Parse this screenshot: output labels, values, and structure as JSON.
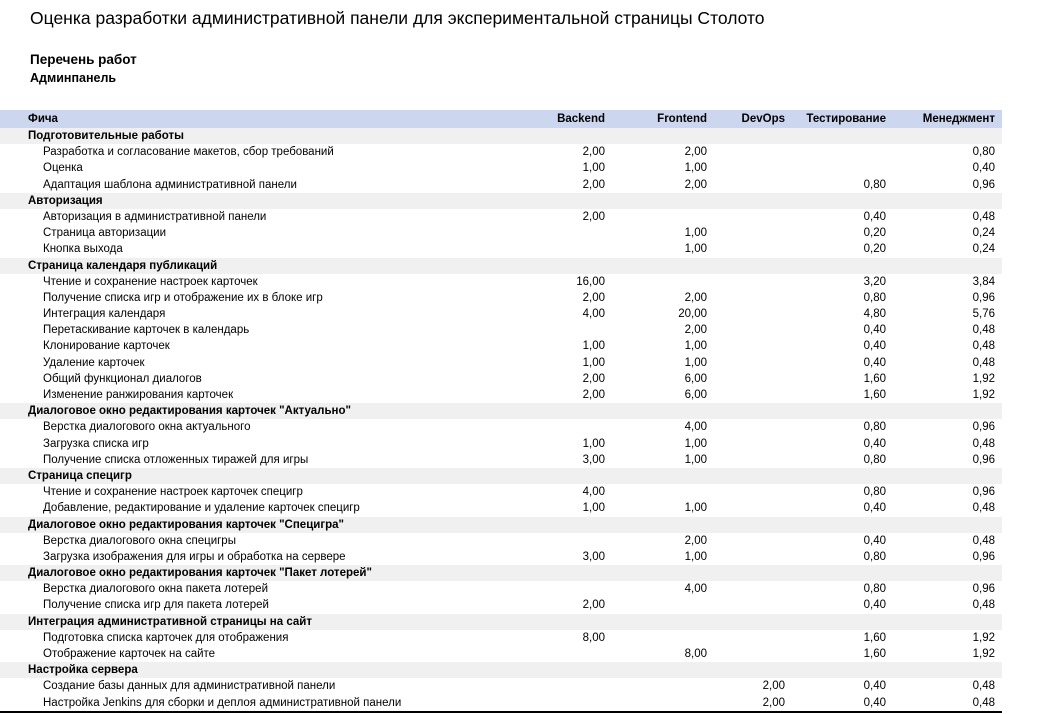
{
  "title": "Оценка разработки административной панели для экспериментальной страницы Столото",
  "subtitle1": "Перечень работ",
  "subtitle2": "Админпанель",
  "corner_fragment": "#",
  "colors": {
    "header_bg": "#ccd6ee",
    "section_bg": "#f0f0f0",
    "border_bottom": "#000000",
    "text": "#000000"
  },
  "table": {
    "feature_header": "Фича",
    "columns": [
      "Backend",
      "Frontend",
      "DevOps",
      "Тестирование",
      "Менеджмент"
    ],
    "sections": [
      {
        "name": "Подготовительные работы",
        "rows": [
          {
            "feature": "Разработка и согласование макетов, сбор требований",
            "values": [
              "2,00",
              "2,00",
              "",
              "",
              "0,80"
            ]
          },
          {
            "feature": "Оценка",
            "values": [
              "1,00",
              "1,00",
              "",
              "",
              "0,40"
            ]
          },
          {
            "feature": "Адаптация шаблона административной панели",
            "values": [
              "2,00",
              "2,00",
              "",
              "0,80",
              "0,96"
            ]
          }
        ]
      },
      {
        "name": "Авторизация",
        "rows": [
          {
            "feature": "Авторизация в административной панели",
            "values": [
              "2,00",
              "",
              "",
              "0,40",
              "0,48"
            ]
          },
          {
            "feature": "Страница авторизации",
            "values": [
              "",
              "1,00",
              "",
              "0,20",
              "0,24"
            ]
          },
          {
            "feature": "Кнопка выхода",
            "values": [
              "",
              "1,00",
              "",
              "0,20",
              "0,24"
            ]
          }
        ]
      },
      {
        "name": "Страница календаря публикаций",
        "rows": [
          {
            "feature": "Чтение и сохранение настроек карточек",
            "values": [
              "16,00",
              "",
              "",
              "3,20",
              "3,84"
            ]
          },
          {
            "feature": "Получение списка игр и отображение их в блоке игр",
            "values": [
              "2,00",
              "2,00",
              "",
              "0,80",
              "0,96"
            ]
          },
          {
            "feature": "Интеграция календаря",
            "values": [
              "4,00",
              "20,00",
              "",
              "4,80",
              "5,76"
            ]
          },
          {
            "feature": "Перетаскивание карточек в календарь",
            "values": [
              "",
              "2,00",
              "",
              "0,40",
              "0,48"
            ]
          },
          {
            "feature": "Клонирование карточек",
            "values": [
              "1,00",
              "1,00",
              "",
              "0,40",
              "0,48"
            ]
          },
          {
            "feature": "Удаление карточек",
            "values": [
              "1,00",
              "1,00",
              "",
              "0,40",
              "0,48"
            ]
          },
          {
            "feature": "Общий функционал диалогов",
            "values": [
              "2,00",
              "6,00",
              "",
              "1,60",
              "1,92"
            ]
          },
          {
            "feature": "Изменение ранжирования карточек",
            "values": [
              "2,00",
              "6,00",
              "",
              "1,60",
              "1,92"
            ]
          }
        ]
      },
      {
        "name": "Диалоговое окно редактирования карточек \"Актуально\"",
        "rows": [
          {
            "feature": "Верстка диалогового окна актуального",
            "values": [
              "",
              "4,00",
              "",
              "0,80",
              "0,96"
            ]
          },
          {
            "feature": "Загрузка списка игр",
            "values": [
              "1,00",
              "1,00",
              "",
              "0,40",
              "0,48"
            ]
          },
          {
            "feature": "Получение списка отложенных тиражей для игры",
            "values": [
              "3,00",
              "1,00",
              "",
              "0,80",
              "0,96"
            ]
          }
        ]
      },
      {
        "name": "Страница специгр",
        "rows": [
          {
            "feature": "Чтение и сохранение настроек карточек специгр",
            "values": [
              "4,00",
              "",
              "",
              "0,80",
              "0,96"
            ]
          },
          {
            "feature": "Добавление, редактирование и удаление карточек специгр",
            "values": [
              "1,00",
              "1,00",
              "",
              "0,40",
              "0,48"
            ]
          }
        ]
      },
      {
        "name": "Диалоговое окно редактирования карточек \"Специгра\"",
        "rows": [
          {
            "feature": "Верстка диалогового окна специгры",
            "values": [
              "",
              "2,00",
              "",
              "0,40",
              "0,48"
            ]
          },
          {
            "feature": "Загрузка изображения для игры и обработка на сервере",
            "values": [
              "3,00",
              "1,00",
              "",
              "0,80",
              "0,96"
            ]
          }
        ]
      },
      {
        "name": "Диалоговое окно редактирования карточек \"Пакет лотерей\"",
        "rows": [
          {
            "feature": "Верстка диалогового окна пакета лотерей",
            "values": [
              "",
              "4,00",
              "",
              "0,80",
              "0,96"
            ]
          },
          {
            "feature": "Получение списка игр для пакета лотерей",
            "values": [
              "2,00",
              "",
              "",
              "0,40",
              "0,48"
            ]
          }
        ]
      },
      {
        "name": "Интеграция административной страницы на сайт",
        "rows": [
          {
            "feature": "Подготовка списка карточек для отображения",
            "values": [
              "8,00",
              "",
              "",
              "1,60",
              "1,92"
            ]
          },
          {
            "feature": "Отображение карточек на сайте",
            "values": [
              "",
              "8,00",
              "",
              "1,60",
              "1,92"
            ]
          }
        ]
      },
      {
        "name": "Настройка сервера",
        "rows": [
          {
            "feature": "Создание базы данных для административной панели",
            "values": [
              "",
              "",
              "2,00",
              "0,40",
              "0,48"
            ]
          },
          {
            "feature": "Настройка Jenkins для сборки и деплоя административной панели",
            "values": [
              "",
              "",
              "2,00",
              "0,40",
              "0,48"
            ]
          }
        ]
      }
    ]
  }
}
